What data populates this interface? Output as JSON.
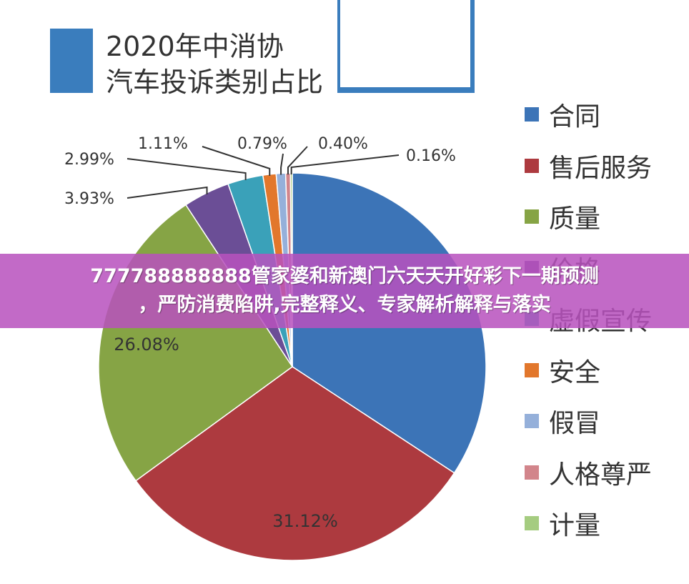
{
  "title_lines": [
    "2020年中消协",
    "汽车投诉类别占比"
  ],
  "chart_data": {
    "type": "pie",
    "slices": [
      {
        "label": "合同",
        "value": 34.67,
        "color": "#3c74b7",
        "data_label": ""
      },
      {
        "label": "售后服务",
        "value": 31.12,
        "color": "#ad3a3f",
        "data_label": "31.12%"
      },
      {
        "label": "质量",
        "value": 26.08,
        "color": "#86a445",
        "data_label": "26.08%"
      },
      {
        "label": "价格",
        "value": 3.93,
        "color": "#6b4e96",
        "data_label": "3.93%"
      },
      {
        "label": "虚假宣传",
        "value": 2.99,
        "color": "#3aa1b9",
        "data_label": "2.99%"
      },
      {
        "label": "安全",
        "value": 1.11,
        "color": "#e2772c",
        "data_label": "1.11%"
      },
      {
        "label": "假冒",
        "value": 0.79,
        "color": "#95b0da",
        "data_label": "0.79%"
      },
      {
        "label": "人格尊严",
        "value": 0.4,
        "color": "#d2858b",
        "data_label": "0.40%"
      },
      {
        "label": "计量",
        "value": 0.16,
        "color": "#a5cc80",
        "data_label": "0.16%"
      }
    ],
    "legend_position": "right"
  },
  "overlay": {
    "line1": "777788888888管家婆和新澳门六天天开好彩下一期预测",
    "line2": "，严防消费陷阱,完整释义、专家解析解释与落实"
  }
}
